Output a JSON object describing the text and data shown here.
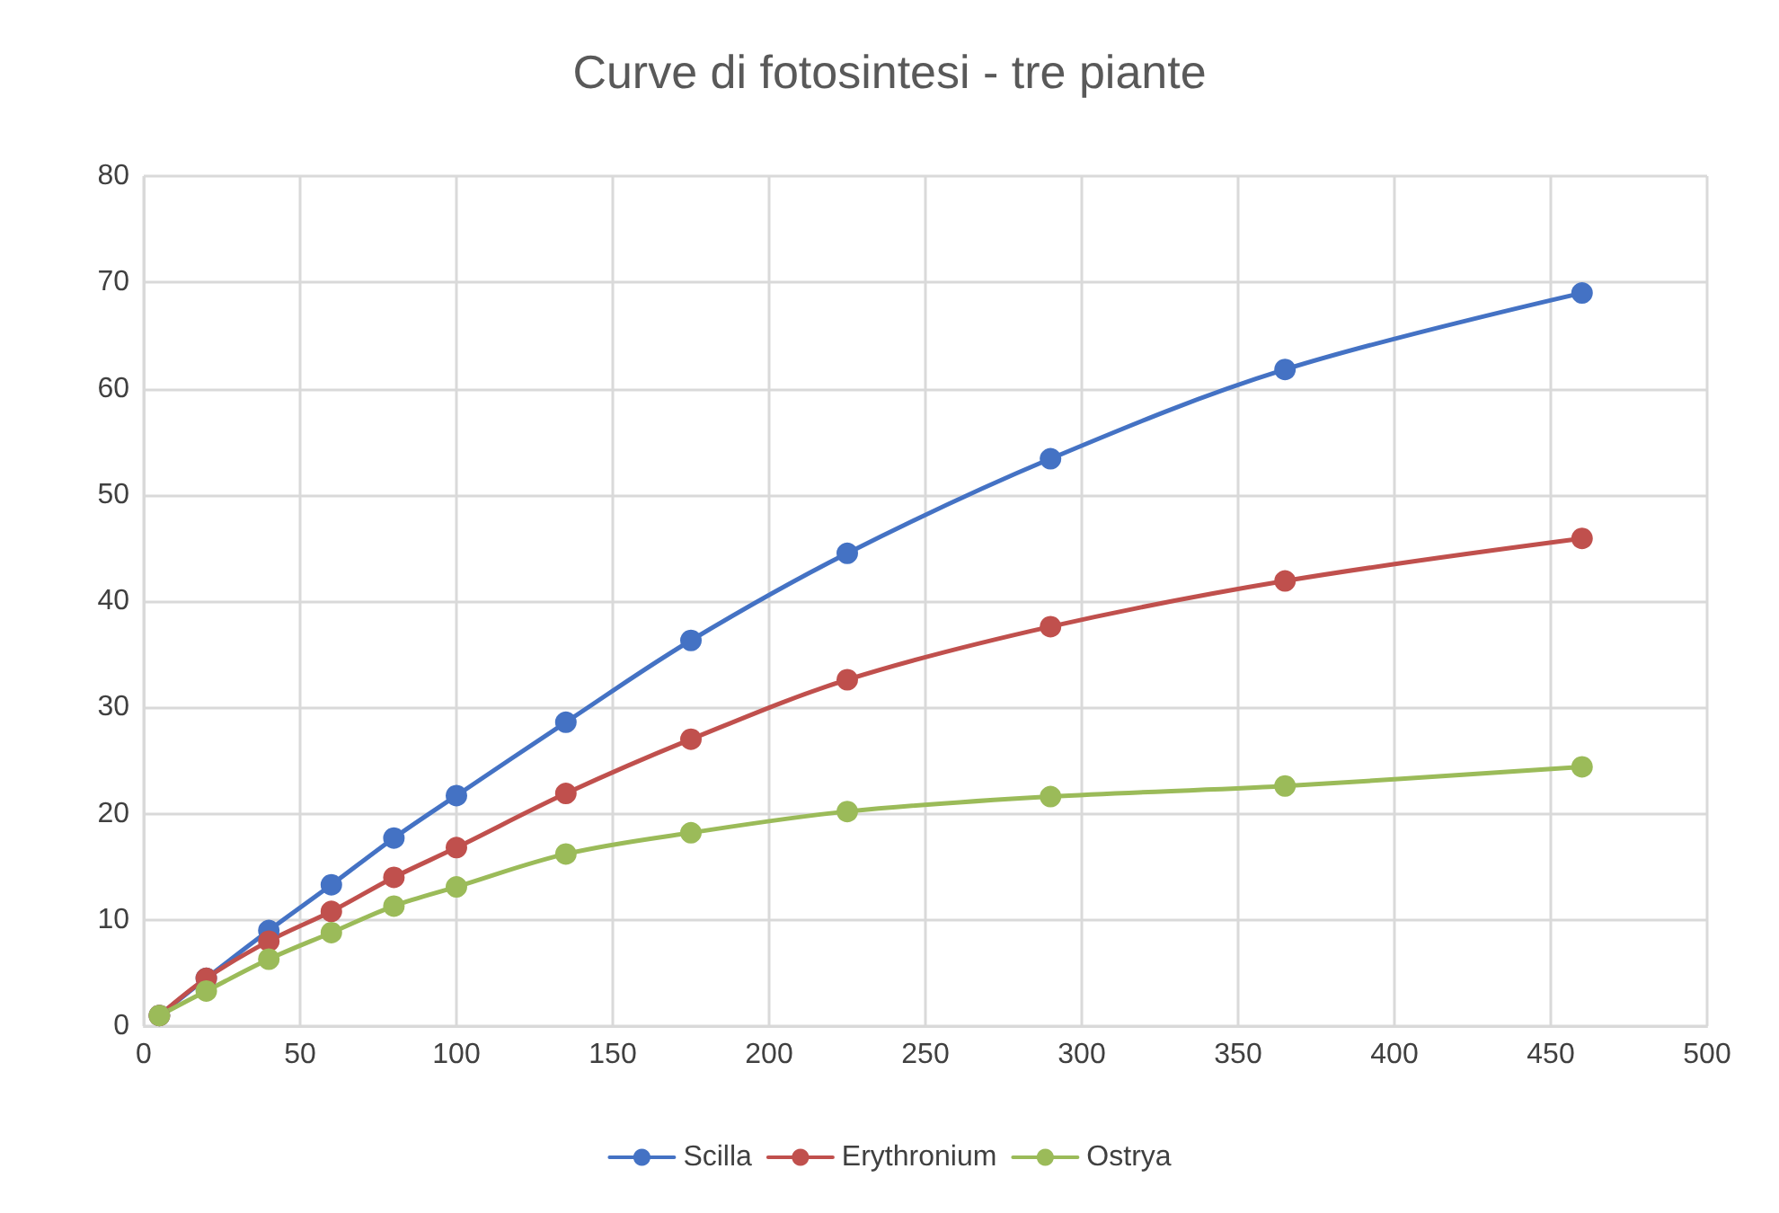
{
  "chart_data": {
    "type": "line",
    "title": "Curve di fotosintesi - tre piante",
    "x": [
      5,
      20,
      40,
      60,
      80,
      100,
      135,
      175,
      225,
      290,
      365,
      460
    ],
    "series": [
      {
        "name": "Scilla",
        "color": "#4472c4",
        "values": [
          1,
          4.5,
          9,
          13.3,
          17.7,
          21.7,
          28.6,
          36.3,
          44.5,
          53.4,
          61.8,
          69
        ]
      },
      {
        "name": "Erythronium",
        "color": "#c0504d",
        "values": [
          1,
          4.5,
          8,
          10.8,
          14,
          16.8,
          21.9,
          27,
          32.6,
          37.6,
          41.9,
          45.9
        ]
      },
      {
        "name": "Ostrya",
        "color": "#9bbb59",
        "values": [
          1,
          3.3,
          6.3,
          8.8,
          11.3,
          13.1,
          16.2,
          18.2,
          20.2,
          21.6,
          22.6,
          24.4
        ]
      }
    ],
    "xlim": [
      0,
      500
    ],
    "xticks": [
      0,
      50,
      100,
      150,
      200,
      250,
      300,
      350,
      400,
      450,
      500
    ],
    "ylim": [
      0,
      80
    ],
    "yticks": [
      0,
      10,
      20,
      30,
      40,
      50,
      60,
      70,
      80
    ],
    "grid": true,
    "legend": "bottom",
    "marker": "circle",
    "line_style": "solid"
  }
}
